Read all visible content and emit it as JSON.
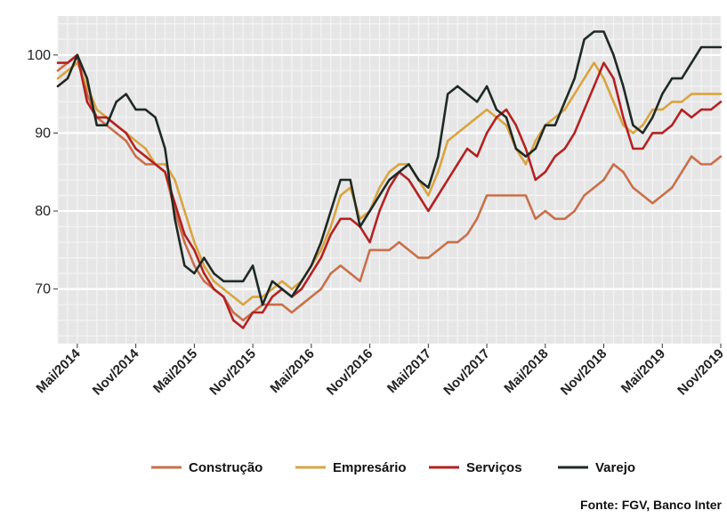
{
  "chart_data": {
    "type": "line",
    "title": "",
    "xlabel": "",
    "ylabel": "",
    "ylim": [
      63,
      105
    ],
    "yticks": [
      70,
      80,
      90,
      100
    ],
    "x_tick_labels": [
      "Mai/2014",
      "Nov/2014",
      "Mai/2015",
      "Nov/2015",
      "Mai/2016",
      "Nov/2016",
      "Mai/2017",
      "Nov/2017",
      "Mai/2018",
      "Nov/2018",
      "Mai/2019",
      "Nov/2019"
    ],
    "x_tick_index": [
      0,
      6,
      12,
      18,
      24,
      30,
      36,
      42,
      48,
      54,
      60,
      66
    ],
    "x_start_index": -2,
    "x_end_index": 66,
    "grid": true,
    "legend_position": "bottom",
    "series": [
      {
        "name": "Construção",
        "color": "#c8704a",
        "values": [
          98,
          99,
          100,
          95,
          92,
          91,
          90,
          89,
          87,
          86,
          86,
          85,
          80,
          76,
          73,
          71,
          70,
          69,
          67,
          66,
          67,
          68,
          68,
          68,
          67,
          68,
          69,
          70,
          72,
          73,
          72,
          71,
          75,
          75,
          75,
          76,
          75,
          74,
          74,
          75,
          76,
          76,
          77,
          79,
          82,
          82,
          82,
          82,
          82,
          79,
          80,
          79,
          79,
          80,
          82,
          83,
          84,
          86,
          85,
          83,
          82,
          81,
          82,
          83,
          85,
          87,
          86,
          86,
          87
        ]
      },
      {
        "name": "Empresário",
        "color": "#d9a441",
        "values": [
          97,
          98,
          99,
          96,
          93,
          92,
          91,
          90,
          89,
          88,
          86,
          86,
          84,
          80,
          76,
          73,
          71,
          70,
          69,
          68,
          69,
          69,
          70,
          71,
          70,
          71,
          73,
          75,
          78,
          82,
          83,
          79,
          80,
          83,
          85,
          86,
          86,
          84,
          82,
          85,
          89,
          90,
          91,
          92,
          93,
          92,
          91,
          88,
          86,
          89,
          91,
          92,
          93,
          95,
          97,
          99,
          97,
          94,
          91,
          90,
          91,
          93,
          93,
          94,
          94,
          95,
          95,
          95,
          95
        ]
      },
      {
        "name": "Serviços",
        "color": "#b32222",
        "values": [
          99,
          99,
          100,
          94,
          92,
          92,
          91,
          90,
          88,
          87,
          86,
          85,
          81,
          77,
          75,
          72,
          70,
          69,
          66,
          65,
          67,
          67,
          69,
          70,
          69,
          70,
          72,
          74,
          77,
          79,
          79,
          78,
          76,
          80,
          83,
          85,
          84,
          82,
          80,
          82,
          84,
          86,
          88,
          87,
          90,
          92,
          93,
          91,
          88,
          84,
          85,
          87,
          88,
          90,
          93,
          96,
          99,
          97,
          92,
          88,
          88,
          90,
          90,
          91,
          93,
          92,
          93,
          93,
          94
        ]
      },
      {
        "name": "Varejo",
        "color": "#1f2a24",
        "values": [
          96,
          97,
          100,
          97,
          91,
          91,
          94,
          95,
          93,
          93,
          92,
          88,
          79,
          73,
          72,
          74,
          72,
          71,
          71,
          71,
          73,
          68,
          71,
          70,
          69,
          71,
          73,
          76,
          80,
          84,
          84,
          78,
          80,
          82,
          84,
          85,
          86,
          84,
          83,
          87,
          95,
          96,
          95,
          94,
          96,
          93,
          92,
          88,
          87,
          88,
          91,
          91,
          94,
          97,
          102,
          103,
          103,
          100,
          96,
          91,
          90,
          92,
          95,
          97,
          97,
          99,
          101,
          101,
          101
        ]
      }
    ],
    "source": "Fonte: FGV, Banco Inter"
  }
}
